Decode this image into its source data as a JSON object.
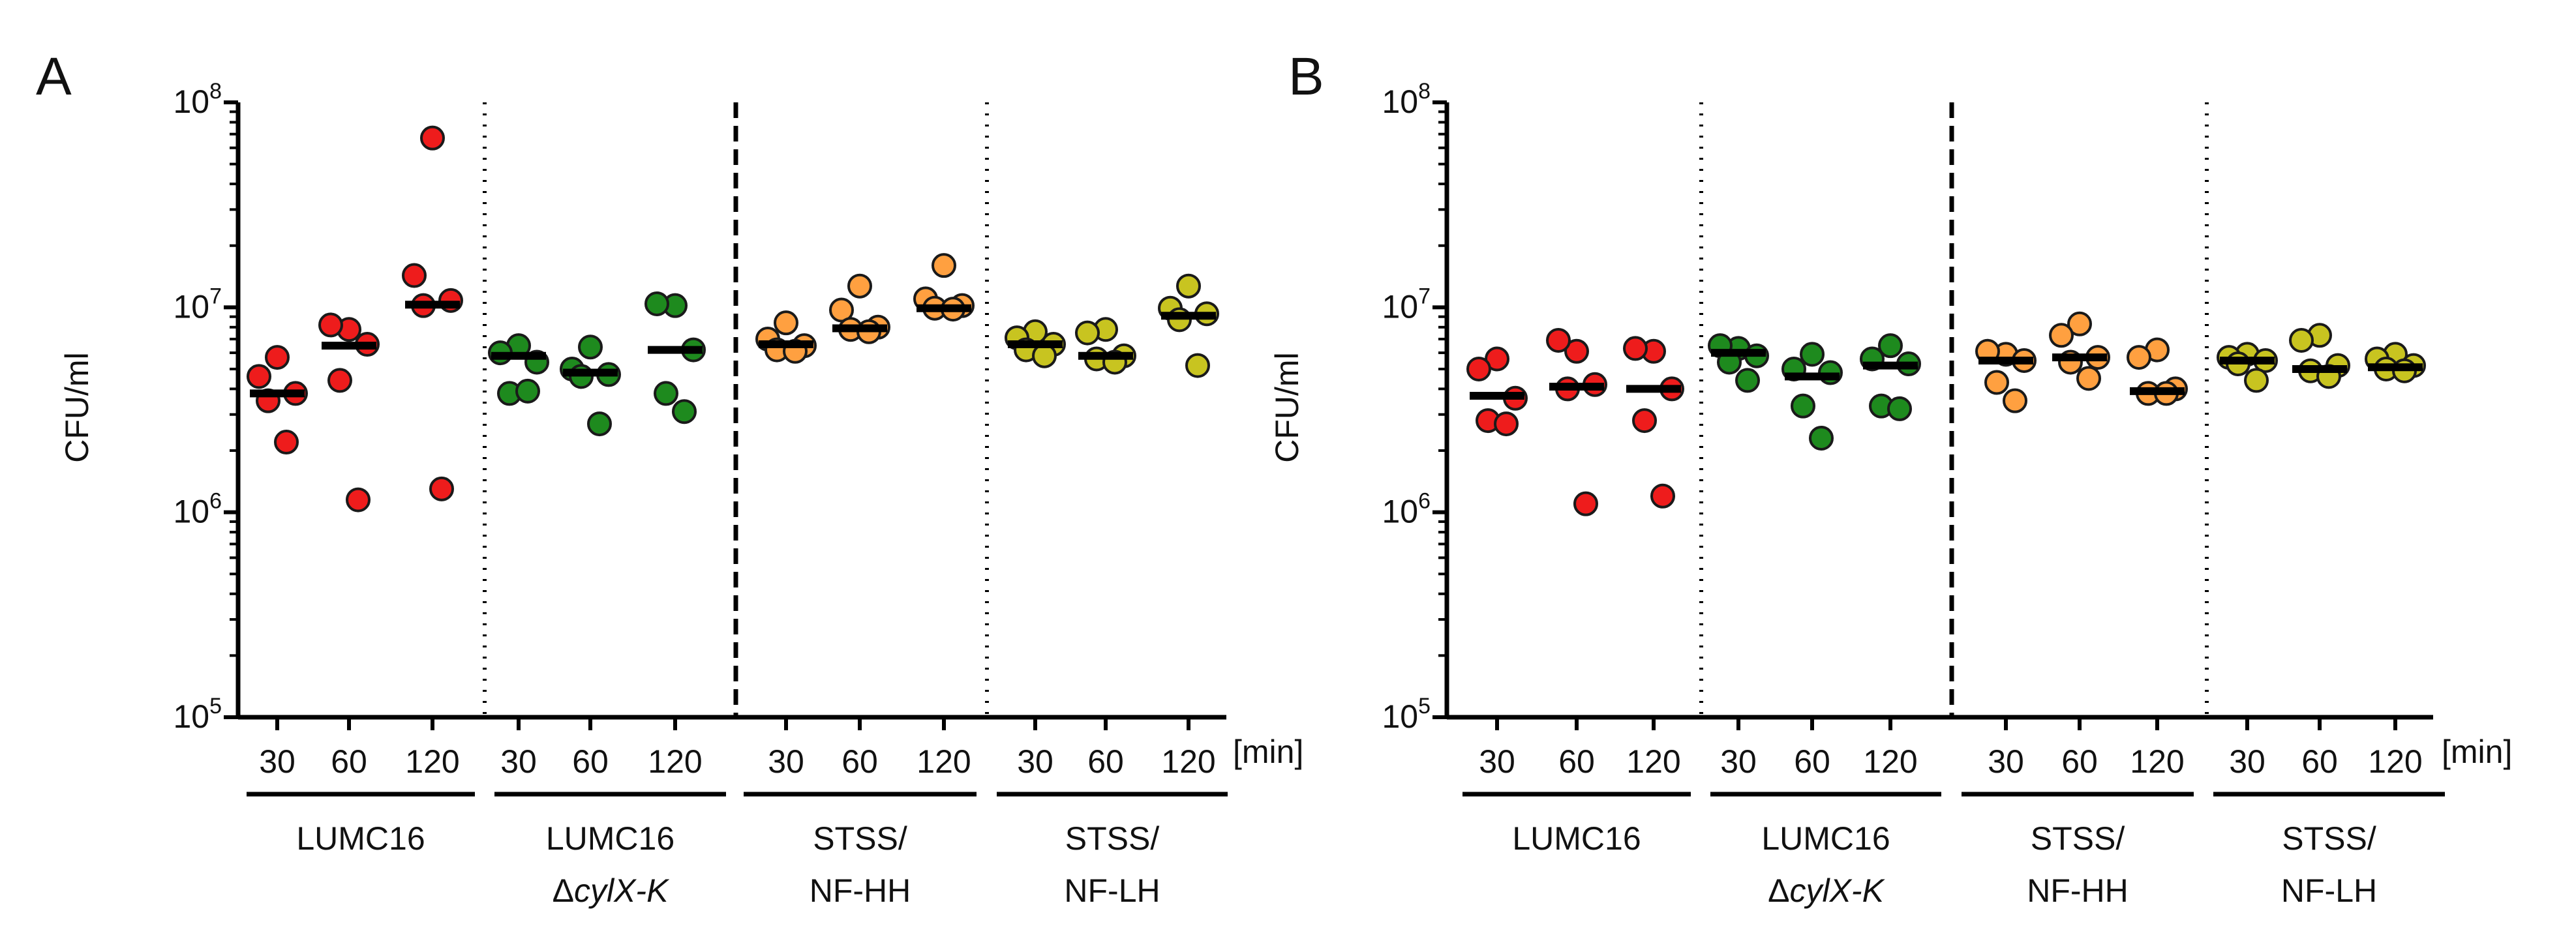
{
  "chart_data": [
    {
      "type": "scatter",
      "panel_label": "A",
      "ylabel": "CFU/ml",
      "yscale": "log",
      "ylim": [
        100000,
        100000000
      ],
      "yticks": [
        {
          "base": "10",
          "exp": "5"
        },
        {
          "base": "10",
          "exp": "6"
        },
        {
          "base": "10",
          "exp": "7"
        },
        {
          "base": "10",
          "exp": "8"
        }
      ],
      "time_unit_label": "[min]",
      "groups": [
        {
          "name": "LUMC16",
          "name_line2": "",
          "name_line2_italic": "",
          "color": "#ee1c1c",
          "timepoints": [
            {
              "time": "30",
              "median": 3800000,
              "points": [
                5700000,
                4600000,
                3800000,
                3500000,
                2200000
              ]
            },
            {
              "time": "60",
              "median": 6500000,
              "points": [
                7800000,
                8200000,
                6600000,
                4400000,
                1150000
              ]
            },
            {
              "time": "120",
              "median": 10300000,
              "points": [
                67000000,
                14300000,
                10800000,
                10200000,
                1300000
              ]
            }
          ]
        },
        {
          "name": "LUMC16",
          "name_line2": "Δ",
          "name_line2_italic": "cylX-K",
          "color": "#1e8a1e",
          "timepoints": [
            {
              "time": "30",
              "median": 5800000,
              "points": [
                6500000,
                6000000,
                5400000,
                3800000,
                3900000
              ]
            },
            {
              "time": "60",
              "median": 4800000,
              "points": [
                6400000,
                5000000,
                4700000,
                4600000,
                2700000
              ]
            },
            {
              "time": "120",
              "median": 6200000,
              "points": [
                10200000,
                10400000,
                6200000,
                3800000,
                3100000
              ]
            }
          ]
        },
        {
          "name": "STSS/",
          "name_line2": "NF-HH",
          "name_line2_italic": "",
          "color": "#ffa040",
          "timepoints": [
            {
              "time": "30",
              "median": 6600000,
              "points": [
                8400000,
                7000000,
                6500000,
                6200000,
                6100000
              ]
            },
            {
              "time": "60",
              "median": 7900000,
              "points": [
                12700000,
                9700000,
                8000000,
                7800000,
                7600000
              ]
            },
            {
              "time": "120",
              "median": 9900000,
              "points": [
                16000000,
                11000000,
                10200000,
                9900000,
                9800000
              ]
            }
          ]
        },
        {
          "name": "STSS/",
          "name_line2": "NF-LH",
          "name_line2_italic": "",
          "color": "#c8c420",
          "timepoints": [
            {
              "time": "30",
              "median": 6600000,
              "points": [
                7600000,
                7100000,
                6600000,
                6200000,
                5800000
              ]
            },
            {
              "time": "60",
              "median": 5800000,
              "points": [
                7800000,
                7500000,
                5800000,
                5600000,
                5400000
              ]
            },
            {
              "time": "120",
              "median": 9100000,
              "points": [
                12700000,
                9900000,
                9300000,
                8700000,
                5200000
              ]
            }
          ]
        }
      ]
    },
    {
      "type": "scatter",
      "panel_label": "B",
      "ylabel": "CFU/ml",
      "yscale": "log",
      "ylim": [
        100000,
        100000000
      ],
      "yticks": [
        {
          "base": "10",
          "exp": "5"
        },
        {
          "base": "10",
          "exp": "6"
        },
        {
          "base": "10",
          "exp": "7"
        },
        {
          "base": "10",
          "exp": "8"
        }
      ],
      "time_unit_label": "[min]",
      "groups": [
        {
          "name": "LUMC16",
          "name_line2": "",
          "name_line2_italic": "",
          "color": "#ee1c1c",
          "timepoints": [
            {
              "time": "30",
              "median": 3700000,
              "points": [
                5600000,
                5000000,
                3600000,
                2800000,
                2700000
              ]
            },
            {
              "time": "60",
              "median": 4100000,
              "points": [
                6100000,
                6900000,
                4200000,
                4000000,
                1100000
              ]
            },
            {
              "time": "120",
              "median": 4000000,
              "points": [
                6100000,
                6300000,
                4000000,
                2800000,
                1200000
              ]
            }
          ]
        },
        {
          "name": "LUMC16",
          "name_line2": "Δ",
          "name_line2_italic": "cylX-K",
          "color": "#1e8a1e",
          "timepoints": [
            {
              "time": "30",
              "median": 6000000,
              "points": [
                6300000,
                6500000,
                5800000,
                5400000,
                4400000
              ]
            },
            {
              "time": "60",
              "median": 4600000,
              "points": [
                5900000,
                5000000,
                4800000,
                3300000,
                2300000
              ]
            },
            {
              "time": "120",
              "median": 5200000,
              "points": [
                6500000,
                5600000,
                5300000,
                3300000,
                3200000
              ]
            }
          ]
        },
        {
          "name": "STSS/",
          "name_line2": "NF-HH",
          "name_line2_italic": "",
          "color": "#ffa040",
          "timepoints": [
            {
              "time": "30",
              "median": 5500000,
              "points": [
                5900000,
                6100000,
                5500000,
                4300000,
                3500000
              ]
            },
            {
              "time": "60",
              "median": 5700000,
              "points": [
                8300000,
                7300000,
                5700000,
                5400000,
                4500000
              ]
            },
            {
              "time": "120",
              "median": 3900000,
              "points": [
                6200000,
                5700000,
                4000000,
                3800000,
                3800000
              ]
            }
          ]
        },
        {
          "name": "STSS/",
          "name_line2": "NF-LH",
          "name_line2_italic": "",
          "color": "#c8c420",
          "timepoints": [
            {
              "time": "30",
              "median": 5500000,
              "points": [
                5900000,
                5700000,
                5500000,
                5300000,
                4400000
              ]
            },
            {
              "time": "60",
              "median": 5000000,
              "points": [
                7300000,
                6900000,
                5200000,
                4900000,
                4600000
              ]
            },
            {
              "time": "120",
              "median": 5100000,
              "points": [
                5900000,
                5600000,
                5200000,
                5000000,
                4900000
              ]
            }
          ]
        }
      ]
    }
  ]
}
